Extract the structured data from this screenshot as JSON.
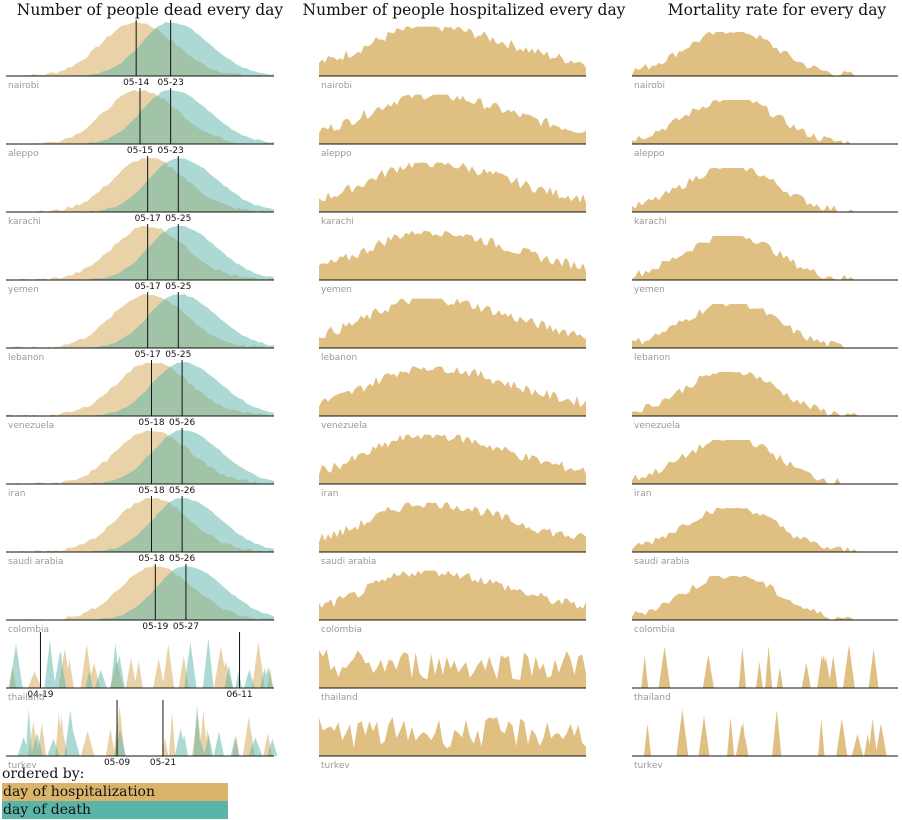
{
  "chart_data": {
    "type": "area",
    "columns": [
      {
        "key": "dead",
        "title": "Number of people dead every day"
      },
      {
        "key": "hosp",
        "title": "Number of people hospitalized every day"
      },
      {
        "key": "mort",
        "title": "Mortality rate for every day"
      }
    ],
    "colors": {
      "hospitalization": "#dbb46c",
      "death": "#5ab4a8",
      "axis": "#111111",
      "label": "#9a9a9a"
    },
    "rows": [
      {
        "name": "nairobi",
        "peak_hosp": "05-14",
        "peak_death": "05-23",
        "shape": "smooth"
      },
      {
        "name": "aleppo",
        "peak_hosp": "05-15",
        "peak_death": "05-23",
        "shape": "smooth"
      },
      {
        "name": "karachi",
        "peak_hosp": "05-17",
        "peak_death": "05-25",
        "shape": "smooth"
      },
      {
        "name": "yemen",
        "peak_hosp": "05-17",
        "peak_death": "05-25",
        "shape": "smooth"
      },
      {
        "name": "lebanon",
        "peak_hosp": "05-17",
        "peak_death": "05-25",
        "shape": "smooth"
      },
      {
        "name": "venezuela",
        "peak_hosp": "05-18",
        "peak_death": "05-26",
        "shape": "smooth"
      },
      {
        "name": "iran",
        "peak_hosp": "05-18",
        "peak_death": "05-26",
        "shape": "smooth"
      },
      {
        "name": "saudi arabia",
        "peak_hosp": "05-18",
        "peak_death": "05-26",
        "shape": "smooth"
      },
      {
        "name": "colombia",
        "peak_hosp": "05-19",
        "peak_death": "05-27",
        "shape": "smooth"
      },
      {
        "name": "thailand",
        "peak_hosp": "04-19",
        "peak_death": "06-11",
        "shape": "sparse"
      },
      {
        "name": "turkey",
        "peak_hosp": "05-21",
        "peak_death": "05-09",
        "shape": "sparse"
      }
    ],
    "legend": {
      "title": "ordered by:",
      "items": [
        {
          "label": "day of hospitalization",
          "color": "#dbb46c"
        },
        {
          "label": "day of death",
          "color": "#5ab4a8"
        }
      ]
    }
  }
}
